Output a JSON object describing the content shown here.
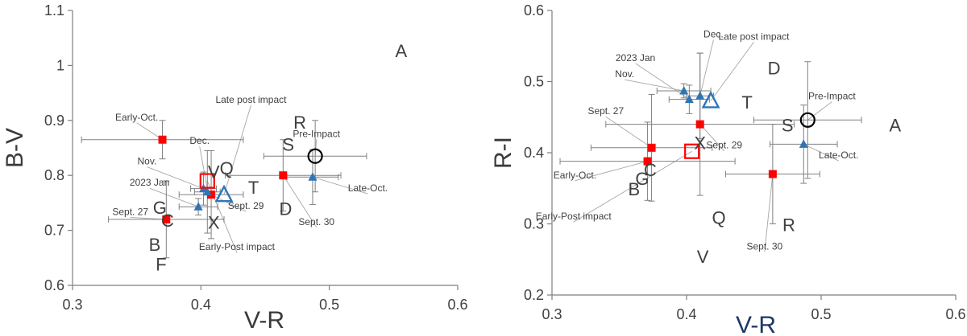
{
  "chart_data": [
    {
      "type": "scatter",
      "xlabel": "V-R",
      "ylabel": "B-V",
      "xlim": [
        0.3,
        0.6
      ],
      "ylim": [
        0.6,
        1.1
      ],
      "xticks": [
        "0.3",
        "0.4",
        "0.5",
        "0.6"
      ],
      "yticks": [
        "0.6",
        "0.7",
        "0.8",
        "0.9",
        "1",
        "1.1"
      ],
      "series": [
        {
          "marker": "red-square",
          "color": "#ff0000",
          "points": [
            {
              "x": 0.37,
              "y": 0.865,
              "xerr": 0.063,
              "yerr": 0.035
            },
            {
              "x": 0.373,
              "y": 0.72,
              "xerr": 0.045,
              "yerr": 0.07
            },
            {
              "x": 0.408,
              "y": 0.765,
              "xerr": 0.025,
              "yerr": 0.08
            },
            {
              "x": 0.464,
              "y": 0.8,
              "xerr": 0.045,
              "yerr": 0.065
            }
          ]
        },
        {
          "marker": "blue-triangle",
          "color": "#2e75b6",
          "points": [
            {
              "x": 0.398,
              "y": 0.743,
              "xerr": 0.015,
              "yerr": 0.015
            },
            {
              "x": 0.402,
              "y": 0.776,
              "xerr": 0.01,
              "yerr": 0.03
            },
            {
              "x": 0.405,
              "y": 0.77,
              "xerr": 0.01,
              "yerr": 0.075
            },
            {
              "x": 0.487,
              "y": 0.797,
              "xerr": 0.02,
              "yerr": 0.05
            }
          ]
        },
        {
          "marker": "large-open-square",
          "color": "#ff0000",
          "points": [
            {
              "x": 0.405,
              "y": 0.79
            }
          ]
        },
        {
          "marker": "large-open-triangle",
          "color": "#2e75b6",
          "points": [
            {
              "x": 0.418,
              "y": 0.765
            }
          ]
        },
        {
          "marker": "large-open-circle",
          "color": "#000000",
          "points": [
            {
              "x": 0.489,
              "y": 0.835,
              "xerr": 0.04,
              "yerr": 0.065
            }
          ]
        }
      ],
      "class_labels": [
        {
          "text": "A",
          "x": 0.556,
          "y": 1.015
        },
        {
          "text": "R",
          "x": 0.477,
          "y": 0.885
        },
        {
          "text": "S",
          "x": 0.468,
          "y": 0.845
        },
        {
          "text": "V",
          "x": 0.41,
          "y": 0.795
        },
        {
          "text": "Q",
          "x": 0.42,
          "y": 0.802
        },
        {
          "text": "T",
          "x": 0.441,
          "y": 0.767
        },
        {
          "text": "D",
          "x": 0.466,
          "y": 0.728
        },
        {
          "text": "G",
          "x": 0.368,
          "y": 0.73
        },
        {
          "text": "C",
          "x": 0.374,
          "y": 0.707
        },
        {
          "text": "X",
          "x": 0.41,
          "y": 0.703
        },
        {
          "text": "B",
          "x": 0.364,
          "y": 0.663
        },
        {
          "text": "F",
          "x": 0.369,
          "y": 0.627
        }
      ],
      "annotations": [
        {
          "text": "Early-Oct.",
          "x": 0.35,
          "y": 0.9,
          "px": 0.37,
          "py": 0.865
        },
        {
          "text": "Dec.",
          "x": 0.399,
          "y": 0.857,
          "px": 0.405,
          "py": 0.775
        },
        {
          "text": "Nov.",
          "x": 0.358,
          "y": 0.82,
          "px": 0.402,
          "py": 0.776
        },
        {
          "text": "2023 Jan",
          "x": 0.36,
          "y": 0.781,
          "px": 0.398,
          "py": 0.743
        },
        {
          "text": "Sept. 27",
          "x": 0.345,
          "y": 0.728,
          "px": 0.373,
          "py": 0.72
        },
        {
          "text": "Late post impact",
          "x": 0.439,
          "y": 0.932,
          "px": 0.418,
          "py": 0.765
        },
        {
          "text": "Pre-Impact",
          "x": 0.49,
          "y": 0.87,
          "px": 0.489,
          "py": 0.835
        },
        {
          "text": "Sept. 29",
          "x": 0.435,
          "y": 0.739,
          "px": 0.408,
          "py": 0.765
        },
        {
          "text": "Sept. 30",
          "x": 0.49,
          "y": 0.71,
          "px": 0.464,
          "py": 0.8
        },
        {
          "text": "Late-Oct.",
          "x": 0.53,
          "y": 0.771,
          "px": 0.487,
          "py": 0.797
        },
        {
          "text": "Early-Post impact",
          "x": 0.428,
          "y": 0.664,
          "px": 0.405,
          "py": 0.79
        }
      ]
    },
    {
      "type": "scatter",
      "xlabel": "V-R",
      "ylabel": "R-I",
      "xlim": [
        0.3,
        0.6
      ],
      "ylim": [
        0.2,
        0.6
      ],
      "xticks": [
        "0.3",
        "0.4",
        "0.5",
        "0.6"
      ],
      "yticks": [
        "0.2",
        "0.3",
        "0.4",
        "0.5",
        "0.6"
      ],
      "series": [
        {
          "marker": "red-square",
          "color": "#ff0000",
          "points": [
            {
              "x": 0.371,
              "y": 0.388,
              "xerr": 0.065,
              "yerr": 0.055
            },
            {
              "x": 0.374,
              "y": 0.407,
              "xerr": 0.045,
              "yerr": 0.075
            },
            {
              "x": 0.41,
              "y": 0.44,
              "xerr": 0.07,
              "yerr": 0.1
            },
            {
              "x": 0.464,
              "y": 0.37,
              "xerr": 0.035,
              "yerr": 0.07
            }
          ]
        },
        {
          "marker": "blue-triangle",
          "color": "#2e75b6",
          "points": [
            {
              "x": 0.398,
              "y": 0.487,
              "xerr": 0.02,
              "yerr": 0.01
            },
            {
              "x": 0.402,
              "y": 0.475,
              "xerr": 0.015,
              "yerr": 0.02
            },
            {
              "x": 0.41,
              "y": 0.48,
              "xerr": 0.01,
              "yerr": 0.06
            },
            {
              "x": 0.487,
              "y": 0.412,
              "xerr": 0.025,
              "yerr": 0.055
            }
          ]
        },
        {
          "marker": "large-open-square",
          "color": "#ff0000",
          "points": [
            {
              "x": 0.404,
              "y": 0.402
            }
          ]
        },
        {
          "marker": "large-open-triangle",
          "color": "#2e75b6",
          "points": [
            {
              "x": 0.418,
              "y": 0.473
            }
          ]
        },
        {
          "marker": "large-open-circle",
          "color": "#000000",
          "points": [
            {
              "x": 0.49,
              "y": 0.446,
              "xerr": 0.04,
              "yerr": 0.082
            }
          ]
        }
      ],
      "class_labels": [
        {
          "text": "D",
          "x": 0.465,
          "y": 0.51
        },
        {
          "text": "T",
          "x": 0.445,
          "y": 0.462
        },
        {
          "text": "S",
          "x": 0.475,
          "y": 0.43
        },
        {
          "text": "A",
          "x": 0.555,
          "y": 0.43
        },
        {
          "text": "X",
          "x": 0.41,
          "y": 0.405
        },
        {
          "text": "C",
          "x": 0.373,
          "y": 0.367
        },
        {
          "text": "G",
          "x": 0.367,
          "y": 0.355
        },
        {
          "text": "B",
          "x": 0.361,
          "y": 0.34
        },
        {
          "text": "Q",
          "x": 0.424,
          "y": 0.3
        },
        {
          "text": "R",
          "x": 0.476,
          "y": 0.29
        },
        {
          "text": "V",
          "x": 0.412,
          "y": 0.245
        }
      ],
      "annotations": [
        {
          "text": "Dec.",
          "x": 0.42,
          "y": 0.562,
          "px": 0.41,
          "py": 0.48
        },
        {
          "text": "2023 Jan",
          "x": 0.362,
          "y": 0.529,
          "px": 0.402,
          "py": 0.475
        },
        {
          "text": "Late post impact",
          "x": 0.45,
          "y": 0.559,
          "px": 0.418,
          "py": 0.473
        },
        {
          "text": "Nov.",
          "x": 0.354,
          "y": 0.506,
          "px": 0.398,
          "py": 0.487
        },
        {
          "text": "Pre-Impact",
          "x": 0.508,
          "y": 0.475,
          "px": 0.49,
          "py": 0.446
        },
        {
          "text": "Sept. 27",
          "x": 0.34,
          "y": 0.454,
          "px": 0.374,
          "py": 0.407
        },
        {
          "text": "Sept. 29",
          "x": 0.428,
          "y": 0.406,
          "px": 0.41,
          "py": 0.44
        },
        {
          "text": "Late-Oct.",
          "x": 0.513,
          "y": 0.392,
          "px": 0.487,
          "py": 0.412
        },
        {
          "text": "Early-Oct.",
          "x": 0.317,
          "y": 0.364,
          "px": 0.371,
          "py": 0.388
        },
        {
          "text": "Early-Post impact",
          "x": 0.316,
          "y": 0.306,
          "px": 0.404,
          "py": 0.402
        },
        {
          "text": "Sept. 30",
          "x": 0.458,
          "y": 0.264,
          "px": 0.464,
          "py": 0.37
        }
      ]
    }
  ]
}
